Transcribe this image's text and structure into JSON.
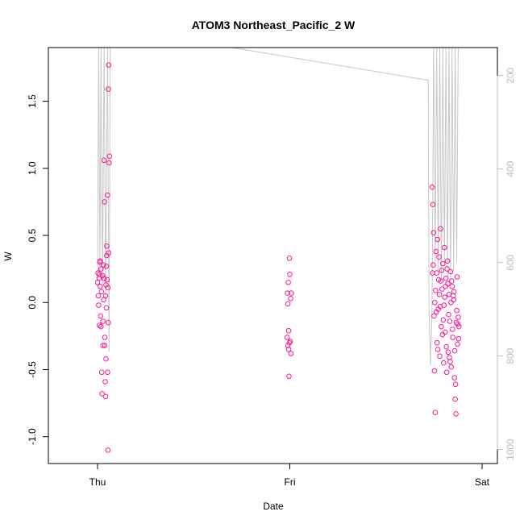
{
  "chart_data": {
    "type": "scatter",
    "title": "ATOM3 Northeast_Pacific_2 W",
    "xlabel": "Date",
    "ylabel": "W",
    "x_ticks": [
      "Thu",
      "Fri",
      "Sat"
    ],
    "y_ticks": [
      "-1.0",
      "-0.5",
      "0.0",
      "0.5",
      "1.0",
      "1.5"
    ],
    "y2_ticks": [
      "200",
      "400",
      "600",
      "800",
      "1000"
    ],
    "ylim": [
      -1.2,
      1.9
    ],
    "y2lim": [
      1030,
      140
    ],
    "colors": {
      "points": "#ff1493",
      "depth_line": "#c8c8c8",
      "axis": "#000000",
      "right_axis": "#bdbdbd"
    },
    "series": [
      {
        "values": [
          [
            0.0,
            0.15
          ],
          [
            0.01,
            0.22
          ],
          [
            0.02,
            0.05
          ],
          [
            0.03,
            -0.02
          ],
          [
            0.04,
            0.18
          ],
          [
            0.05,
            -0.17
          ],
          [
            0.06,
            0.3
          ],
          [
            0.07,
            0.12
          ],
          [
            0.08,
            -0.1
          ],
          [
            0.09,
            0.25
          ],
          [
            0.1,
            0.08
          ],
          [
            0.11,
            -0.52
          ],
          [
            0.12,
            -0.68
          ],
          [
            0.13,
            0.2
          ],
          [
            0.14,
            -0.14
          ],
          [
            0.15,
            0.28
          ],
          [
            0.16,
            0.02
          ],
          [
            0.17,
            1.06
          ],
          [
            0.18,
            0.75
          ],
          [
            0.19,
            -0.32
          ],
          [
            0.2,
            -0.59
          ],
          [
            0.21,
            -0.7
          ],
          [
            0.22,
            0.13
          ],
          [
            0.23,
            -0.04
          ],
          [
            0.24,
            0.42
          ],
          [
            0.25,
            0.17
          ],
          [
            0.26,
            0.8
          ],
          [
            0.27,
            -1.1
          ],
          [
            0.28,
            1.59
          ],
          [
            0.29,
            1.77
          ],
          [
            0.3,
            1.04
          ],
          [
            0.31,
            1.09
          ],
          [
            0.22,
            -0.42
          ],
          [
            0.24,
            0.35
          ],
          [
            0.26,
            -0.52
          ],
          [
            0.27,
            0.11
          ],
          [
            0.28,
            -0.15
          ],
          [
            0.29,
            0.37
          ],
          [
            0.05,
            0.21
          ],
          [
            0.07,
            0.31
          ],
          [
            0.09,
            -0.18
          ],
          [
            0.14,
            -0.32
          ],
          [
            0.17,
            0.18
          ],
          [
            0.19,
            -0.26
          ],
          [
            0.21,
            0.05
          ],
          [
            0.23,
            0.27
          ],
          [
            4.93,
            -0.26
          ],
          [
            4.94,
            0.07
          ],
          [
            4.95,
            -0.32
          ],
          [
            4.96,
            0.15
          ],
          [
            4.97,
            -0.35
          ],
          [
            4.98,
            -0.55
          ],
          [
            4.99,
            0.33
          ],
          [
            5.0,
            0.21
          ],
          [
            5.01,
            -0.29
          ],
          [
            5.02,
            0.03
          ],
          [
            5.03,
            -0.38
          ],
          [
            5.04,
            0.07
          ],
          [
            4.95,
            -0.01
          ],
          [
            4.97,
            -0.21
          ],
          [
            4.99,
            -0.3
          ],
          [
            8.7,
            0.86
          ],
          [
            8.72,
            0.73
          ],
          [
            8.74,
            0.52
          ],
          [
            8.76,
            -0.51
          ],
          [
            8.78,
            -0.82
          ],
          [
            8.8,
            0.38
          ],
          [
            8.82,
            0.22
          ],
          [
            8.84,
            0.47
          ],
          [
            8.86,
            -0.05
          ],
          [
            8.88,
            0.34
          ],
          [
            8.9,
            -0.4
          ],
          [
            8.92,
            0.55
          ],
          [
            8.94,
            -0.18
          ],
          [
            8.96,
            0.1
          ],
          [
            8.98,
            0.29
          ],
          [
            9.0,
            -0.45
          ],
          [
            9.02,
            0.41
          ],
          [
            9.04,
            -0.22
          ],
          [
            9.06,
            0.18
          ],
          [
            9.08,
            -0.52
          ],
          [
            9.1,
            0.31
          ],
          [
            9.12,
            -0.37
          ],
          [
            9.14,
            0.06
          ],
          [
            9.16,
            -0.14
          ],
          [
            9.18,
            0.23
          ],
          [
            9.2,
            -0.48
          ],
          [
            9.22,
            0.12
          ],
          [
            9.24,
            -0.26
          ],
          [
            9.26,
            0.02
          ],
          [
            9.28,
            -0.56
          ],
          [
            9.3,
            -0.72
          ],
          [
            9.32,
            -0.83
          ],
          [
            9.34,
            -0.06
          ],
          [
            9.36,
            -0.31
          ],
          [
            9.38,
            -0.11
          ],
          [
            9.4,
            -0.18
          ],
          [
            8.71,
            0.22
          ],
          [
            8.75,
            -0.1
          ],
          [
            8.79,
            0.09
          ],
          [
            8.83,
            -0.3
          ],
          [
            8.87,
            0.17
          ],
          [
            8.91,
            -0.03
          ],
          [
            8.95,
            0.24
          ],
          [
            8.99,
            -0.13
          ],
          [
            9.03,
            0.04
          ],
          [
            9.07,
            -0.33
          ],
          [
            9.11,
            0.14
          ],
          [
            9.15,
            -0.41
          ],
          [
            9.19,
            0.0
          ],
          [
            9.23,
            -0.2
          ],
          [
            9.27,
            0.08
          ],
          [
            9.31,
            -0.61
          ],
          [
            9.35,
            0.19
          ],
          [
            9.39,
            -0.27
          ],
          [
            8.73,
            0.28
          ],
          [
            8.81,
            -0.07
          ],
          [
            8.89,
            0.06
          ],
          [
            8.97,
            -0.24
          ],
          [
            9.05,
            0.12
          ],
          [
            9.13,
            -0.09
          ],
          [
            9.21,
            0.16
          ],
          [
            9.29,
            -0.36
          ],
          [
            9.37,
            -0.16
          ],
          [
            8.77,
            0.0
          ],
          [
            8.85,
            -0.35
          ],
          [
            8.93,
            0.16
          ],
          [
            9.01,
            -0.02
          ],
          [
            9.09,
            0.25
          ],
          [
            9.17,
            -0.44
          ],
          [
            9.25,
            0.05
          ],
          [
            9.33,
            -0.15
          ]
        ]
      }
    ],
    "depth_track": [
      [
        0.0,
        640
      ],
      [
        0.03,
        140
      ],
      [
        0.06,
        620
      ],
      [
        0.09,
        140
      ],
      [
        0.13,
        650
      ],
      [
        0.17,
        140
      ],
      [
        0.21,
        680
      ],
      [
        0.26,
        140
      ],
      [
        0.3,
        790
      ],
      [
        0.33,
        140
      ],
      [
        3.5,
        140
      ],
      [
        8.6,
        210
      ],
      [
        8.62,
        700
      ],
      [
        8.66,
        820
      ],
      [
        8.7,
        690
      ],
      [
        8.74,
        140
      ],
      [
        8.78,
        600
      ],
      [
        8.82,
        140
      ],
      [
        8.86,
        620
      ],
      [
        8.9,
        140
      ],
      [
        8.94,
        640
      ],
      [
        8.98,
        140
      ],
      [
        9.02,
        600
      ],
      [
        9.06,
        140
      ],
      [
        9.1,
        630
      ],
      [
        9.14,
        140
      ],
      [
        9.18,
        640
      ],
      [
        9.22,
        140
      ],
      [
        9.26,
        620
      ],
      [
        9.3,
        140
      ],
      [
        9.34,
        600
      ],
      [
        9.38,
        140
      ]
    ]
  }
}
